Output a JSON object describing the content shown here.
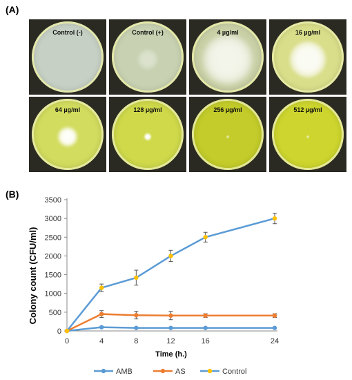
{
  "panel_a": {
    "label": "(A)",
    "plates": [
      {
        "label": "Control (-)",
        "dish": "#c6d0c4",
        "rim": "#dfe4c8",
        "colony": "none"
      },
      {
        "label": "Control (+)",
        "dish": "#c8d2b2",
        "rim": "#dde2b6",
        "colony": "faint"
      },
      {
        "label": "4 µg/ml",
        "dish": "#c9d0a6",
        "rim": "#d7dcaa",
        "colony": "large"
      },
      {
        "label": "16 µg/ml",
        "dish": "#d9de8a",
        "rim": "#e6e8a0",
        "colony": "medium"
      },
      {
        "label": "64 µg/ml",
        "dish": "#d2dc5e",
        "rim": "#e1e78a",
        "colony": "small"
      },
      {
        "label": "128 µg/ml",
        "dish": "#cfd94a",
        "rim": "#dfe577",
        "colony": "dot"
      },
      {
        "label": "256 µg/ml",
        "dish": "#c3cc2a",
        "rim": "#d4da58",
        "colony": "trace"
      },
      {
        "label": "512 µg/ml",
        "dish": "#cdd52e",
        "rim": "#dde160",
        "colony": "trace"
      }
    ]
  },
  "panel_b": {
    "label": "(B)"
  },
  "chart_data": {
    "type": "line",
    "x": [
      0,
      4,
      8,
      12,
      16,
      24
    ],
    "xlabel": "Time (h.)",
    "ylabel": "Colony count (CFU/ml)",
    "ylim": [
      0,
      3500
    ],
    "yticks": [
      0,
      500,
      1000,
      1500,
      2000,
      2500,
      3000,
      3500
    ],
    "xticks": [
      0,
      4,
      8,
      12,
      16,
      24
    ],
    "legend_position": "bottom",
    "series": [
      {
        "name": "AMB",
        "color": "#5b9bd5",
        "values": [
          0,
          100,
          80,
          80,
          80,
          80
        ],
        "errors": [
          0,
          10,
          10,
          10,
          10,
          10
        ]
      },
      {
        "name": "AS",
        "color": "#ed7d31",
        "values": [
          0,
          450,
          420,
          410,
          410,
          410
        ],
        "errors": [
          0,
          90,
          100,
          110,
          50,
          50
        ]
      },
      {
        "name": "Control",
        "color": "#5b9bd5",
        "marker": "#ffc000",
        "values": [
          0,
          1150,
          1420,
          2000,
          2500,
          3000
        ],
        "errors": [
          0,
          100,
          200,
          150,
          130,
          140
        ]
      }
    ]
  }
}
